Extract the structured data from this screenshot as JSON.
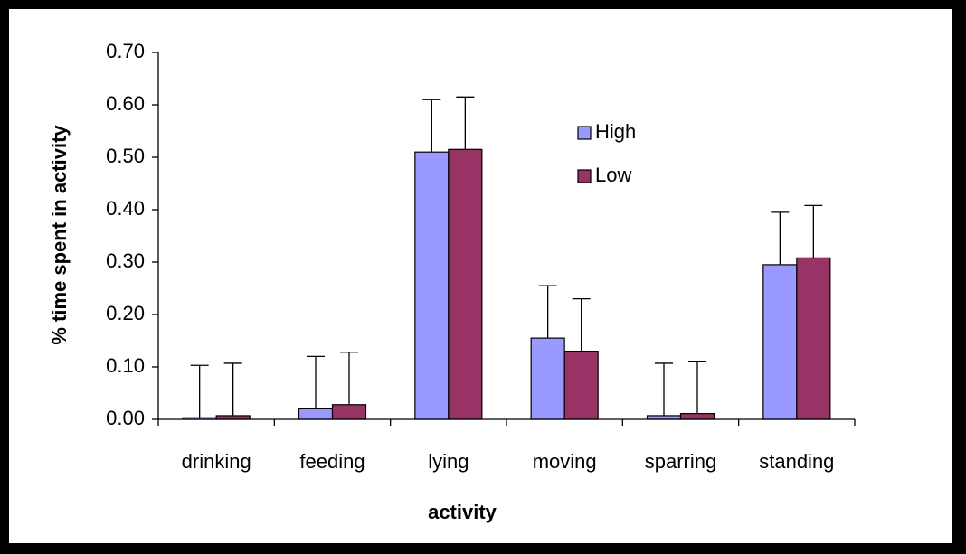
{
  "chart_data": {
    "type": "bar",
    "xlabel": "activity",
    "ylabel": "% time spent in activity",
    "categories": [
      "drinking",
      "feeding",
      "lying",
      "moving",
      "sparring",
      "standing"
    ],
    "series": [
      {
        "name": "High",
        "color": "#9999ff",
        "values": [
          0.003,
          0.02,
          0.51,
          0.155,
          0.007,
          0.295
        ],
        "errors": [
          0.1,
          0.1,
          0.1,
          0.1,
          0.1,
          0.1
        ]
      },
      {
        "name": "Low",
        "color": "#993366",
        "values": [
          0.007,
          0.028,
          0.515,
          0.13,
          0.011,
          0.308
        ],
        "errors": [
          0.1,
          0.1,
          0.1,
          0.1,
          0.1,
          0.1
        ]
      }
    ],
    "ylim": [
      0,
      0.7
    ],
    "yticks": [
      {
        "value": 0,
        "label": "0.00"
      },
      {
        "value": 0.1,
        "label": "0.10"
      },
      {
        "value": 0.2,
        "label": "0.20"
      },
      {
        "value": 0.3,
        "label": "0.30"
      },
      {
        "value": 0.4,
        "label": "0.40"
      },
      {
        "value": 0.5,
        "label": "0.50"
      },
      {
        "value": 0.6,
        "label": "0.60"
      },
      {
        "value": 0.7,
        "label": "0.70"
      }
    ],
    "legend": "upper-right",
    "grid": false
  }
}
